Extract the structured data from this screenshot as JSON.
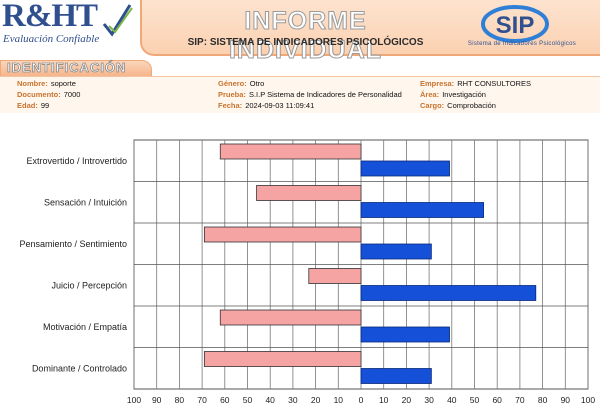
{
  "brand": {
    "logo_text": "R&HT",
    "logo_tagline": "Evaluación Confiable",
    "sip_logo": "SIP",
    "sip_caption": "Sistema de Indicadores Psicológicos"
  },
  "header": {
    "title": "INFORME INDIVIDUAL",
    "subtitle": "SIP: SISTEMA DE INDICADORES PSICOLÓGICOS"
  },
  "section": {
    "title": "IDENTIFICACIÓN"
  },
  "identification": {
    "nombre": {
      "label": "Nombre:",
      "value": "soporte"
    },
    "documento": {
      "label": "Documento:",
      "value": "7000"
    },
    "edad": {
      "label": "Edad:",
      "value": "99"
    },
    "genero": {
      "label": "Género:",
      "value": "Otro"
    },
    "prueba": {
      "label": "Prueba:",
      "value": "S.I.P Sistema de Indicadores de Personalidad"
    },
    "fecha": {
      "label": "Fecha:",
      "value": "2024-09-03 11:09:41"
    },
    "empresa": {
      "label": "Empresa:",
      "value": "RHT CONSULTORES"
    },
    "area": {
      "label": "Área:",
      "value": "Investigación"
    },
    "cargo": {
      "label": "Cargo:",
      "value": "Comprobación"
    }
  },
  "colors": {
    "left_bar": "#f6a3a3",
    "right_bar": "#1450d8",
    "accent": "#c8742e"
  },
  "chart_data": {
    "type": "bar",
    "orientation": "horizontal-diverging",
    "categories": [
      "Extrovertido / Introvertido",
      "Sensación / Intuición",
      "Pensamiento / Sentimiento",
      "Juicio / Percepción",
      "Motivación / Empatía",
      "Dominante / Controlado"
    ],
    "series": [
      {
        "side": "left",
        "values": [
          62,
          46,
          69,
          23,
          62,
          69
        ]
      },
      {
        "side": "right",
        "values": [
          39,
          54,
          31,
          77,
          39,
          31
        ]
      }
    ],
    "xlim": [
      -100,
      100
    ],
    "tick_labels": [
      "100",
      "90",
      "80",
      "70",
      "60",
      "50",
      "40",
      "30",
      "20",
      "10",
      "0",
      "10",
      "20",
      "30",
      "40",
      "50",
      "60",
      "70",
      "80",
      "90",
      "100"
    ],
    "grid": true
  }
}
